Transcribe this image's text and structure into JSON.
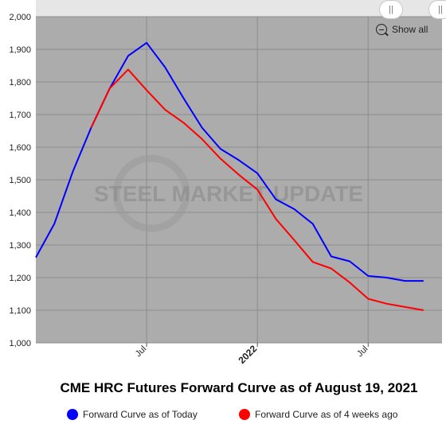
{
  "chart_data": {
    "type": "line",
    "title": "CME HRC Futures Forward Curve as of August 19, 2021",
    "ylim": [
      1000,
      2000
    ],
    "y_ticks": [
      1000,
      1100,
      1200,
      1300,
      1400,
      1500,
      1600,
      1700,
      1800,
      1900,
      2000
    ],
    "y_tick_labels": [
      "1,000",
      "1,100",
      "1,200",
      "1,300",
      "1,400",
      "1,500",
      "1,600",
      "1,700",
      "1,800",
      "1,900",
      "2,000"
    ],
    "x_ticks": [
      {
        "label": "Jul",
        "month_index": 6,
        "bold": false
      },
      {
        "label": "2022",
        "month_index": 12,
        "bold": true
      },
      {
        "label": "Jul",
        "month_index": 18,
        "bold": false
      }
    ],
    "xlim_month_index": [
      0,
      22
    ],
    "grid": true,
    "legend_placement": "bottom",
    "watermark": "STEEL MARKET UPDATE",
    "series": [
      {
        "name": "Forward Curve as of Today",
        "color": "#0000ff",
        "points": [
          {
            "m": 0,
            "y": 1262
          },
          {
            "m": 1,
            "y": 1365
          },
          {
            "m": 2,
            "y": 1525
          },
          {
            "m": 3,
            "y": 1660
          },
          {
            "m": 4,
            "y": 1780
          },
          {
            "m": 5,
            "y": 1880
          },
          {
            "m": 6,
            "y": 1920
          },
          {
            "m": 7,
            "y": 1845
          },
          {
            "m": 8,
            "y": 1750
          },
          {
            "m": 9,
            "y": 1660
          },
          {
            "m": 10,
            "y": 1595
          },
          {
            "m": 11,
            "y": 1560
          },
          {
            "m": 12,
            "y": 1520
          },
          {
            "m": 13,
            "y": 1440
          },
          {
            "m": 14,
            "y": 1410
          },
          {
            "m": 15,
            "y": 1365
          },
          {
            "m": 16,
            "y": 1265
          },
          {
            "m": 17,
            "y": 1250
          },
          {
            "m": 18,
            "y": 1205
          },
          {
            "m": 19,
            "y": 1200
          },
          {
            "m": 20,
            "y": 1190
          },
          {
            "m": 21,
            "y": 1190
          }
        ]
      },
      {
        "name": "Forward Curve as of 4 weeks ago",
        "color": "#ff0000",
        "points": [
          {
            "m": 3,
            "y": 1660
          },
          {
            "m": 4,
            "y": 1780
          },
          {
            "m": 5,
            "y": 1838
          },
          {
            "m": 6,
            "y": 1775
          },
          {
            "m": 7,
            "y": 1715
          },
          {
            "m": 8,
            "y": 1675
          },
          {
            "m": 9,
            "y": 1625
          },
          {
            "m": 10,
            "y": 1565
          },
          {
            "m": 11,
            "y": 1515
          },
          {
            "m": 12,
            "y": 1470
          },
          {
            "m": 13,
            "y": 1380
          },
          {
            "m": 14,
            "y": 1315
          },
          {
            "m": 15,
            "y": 1248
          },
          {
            "m": 16,
            "y": 1228
          },
          {
            "m": 17,
            "y": 1185
          },
          {
            "m": 18,
            "y": 1135
          },
          {
            "m": 19,
            "y": 1120
          },
          {
            "m": 20,
            "y": 1110
          },
          {
            "m": 21,
            "y": 1100
          }
        ]
      }
    ]
  },
  "controls": {
    "show_all_label": "Show all"
  },
  "legend": {
    "today_label": "Forward Curve as of Today",
    "today_color": "#0000ff",
    "prior_label": "Forward Curve as of 4 weeks ago",
    "prior_color": "#ff0000"
  },
  "colors": {
    "plot_background": "#acacac",
    "grid_line": "#8c8c8c"
  }
}
